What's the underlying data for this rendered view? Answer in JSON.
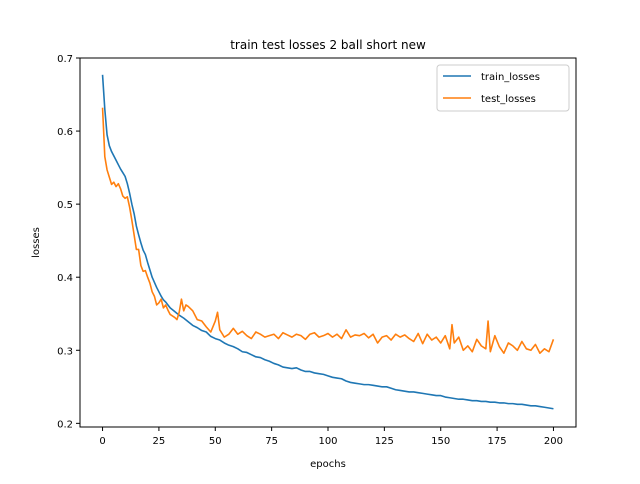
{
  "chart_data": {
    "type": "line",
    "title": "train test losses 2 ball short new",
    "xlabel": "epochs",
    "ylabel": "losses",
    "xlim": [
      -10,
      210
    ],
    "ylim": [
      0.195,
      0.7
    ],
    "xticks": [
      0,
      25,
      50,
      75,
      100,
      125,
      150,
      175,
      200
    ],
    "xtick_labels": [
      "0",
      "25",
      "50",
      "75",
      "100",
      "125",
      "150",
      "175",
      "200"
    ],
    "yticks": [
      0.2,
      0.3,
      0.4,
      0.5,
      0.6,
      0.7
    ],
    "ytick_labels": [
      "0.2",
      "0.3",
      "0.4",
      "0.5",
      "0.6",
      "0.7"
    ],
    "grid": false,
    "legend_position": "upper right",
    "series": [
      {
        "name": "train_losses",
        "color": "#1f77b4",
        "x": [
          0,
          1,
          2,
          3,
          4,
          5,
          6,
          7,
          8,
          9,
          10,
          11,
          12,
          13,
          14,
          15,
          16,
          17,
          18,
          19,
          20,
          21,
          22,
          23,
          24,
          25,
          26,
          27,
          28,
          29,
          30,
          32,
          34,
          36,
          38,
          40,
          42,
          44,
          46,
          48,
          50,
          52,
          54,
          56,
          58,
          60,
          62,
          64,
          66,
          68,
          70,
          72,
          74,
          76,
          78,
          80,
          82,
          84,
          86,
          88,
          90,
          92,
          94,
          96,
          98,
          100,
          102,
          104,
          106,
          108,
          110,
          112,
          114,
          116,
          118,
          120,
          122,
          124,
          126,
          128,
          130,
          132,
          134,
          136,
          138,
          140,
          142,
          144,
          146,
          148,
          150,
          152,
          154,
          156,
          158,
          160,
          162,
          164,
          166,
          168,
          170,
          172,
          174,
          176,
          178,
          180,
          182,
          184,
          186,
          188,
          190,
          192,
          194,
          196,
          198,
          200
        ],
        "y": [
          0.677,
          0.63,
          0.595,
          0.58,
          0.572,
          0.566,
          0.56,
          0.554,
          0.548,
          0.543,
          0.538,
          0.528,
          0.515,
          0.5,
          0.487,
          0.47,
          0.458,
          0.447,
          0.437,
          0.431,
          0.42,
          0.41,
          0.4,
          0.393,
          0.386,
          0.38,
          0.374,
          0.369,
          0.366,
          0.362,
          0.358,
          0.353,
          0.348,
          0.344,
          0.339,
          0.334,
          0.331,
          0.327,
          0.325,
          0.319,
          0.316,
          0.314,
          0.31,
          0.307,
          0.305,
          0.302,
          0.298,
          0.297,
          0.294,
          0.291,
          0.29,
          0.287,
          0.285,
          0.282,
          0.28,
          0.277,
          0.276,
          0.275,
          0.276,
          0.273,
          0.271,
          0.271,
          0.269,
          0.268,
          0.267,
          0.265,
          0.263,
          0.262,
          0.261,
          0.258,
          0.256,
          0.255,
          0.254,
          0.253,
          0.253,
          0.252,
          0.251,
          0.25,
          0.25,
          0.248,
          0.246,
          0.245,
          0.244,
          0.243,
          0.243,
          0.242,
          0.241,
          0.24,
          0.239,
          0.238,
          0.238,
          0.236,
          0.235,
          0.234,
          0.233,
          0.233,
          0.232,
          0.231,
          0.231,
          0.23,
          0.23,
          0.229,
          0.229,
          0.228,
          0.228,
          0.227,
          0.227,
          0.226,
          0.226,
          0.225,
          0.224,
          0.224,
          0.223,
          0.222,
          0.221,
          0.22
        ]
      },
      {
        "name": "test_losses",
        "color": "#ff7f0e",
        "x": [
          0,
          1,
          2,
          3,
          4,
          5,
          6,
          7,
          8,
          9,
          10,
          11,
          12,
          13,
          14,
          15,
          16,
          17,
          18,
          19,
          20,
          21,
          22,
          23,
          24,
          25,
          26,
          27,
          28,
          29,
          30,
          32,
          33,
          34,
          35,
          36,
          37,
          38,
          40,
          42,
          44,
          46,
          48,
          50,
          51,
          52,
          54,
          56,
          58,
          60,
          62,
          64,
          66,
          68,
          70,
          72,
          74,
          76,
          78,
          80,
          82,
          84,
          86,
          88,
          90,
          92,
          94,
          96,
          98,
          100,
          102,
          104,
          106,
          108,
          110,
          112,
          114,
          116,
          118,
          120,
          122,
          124,
          126,
          128,
          130,
          132,
          134,
          136,
          138,
          140,
          142,
          144,
          146,
          148,
          150,
          152,
          154,
          155,
          156,
          158,
          160,
          162,
          164,
          166,
          168,
          170,
          171,
          172,
          174,
          176,
          178,
          180,
          182,
          184,
          186,
          188,
          190,
          192,
          194,
          196,
          198,
          200
        ],
        "y": [
          0.632,
          0.565,
          0.547,
          0.537,
          0.527,
          0.53,
          0.524,
          0.528,
          0.521,
          0.511,
          0.508,
          0.51,
          0.496,
          0.478,
          0.458,
          0.438,
          0.438,
          0.416,
          0.408,
          0.409,
          0.4,
          0.392,
          0.38,
          0.374,
          0.362,
          0.365,
          0.37,
          0.358,
          0.362,
          0.355,
          0.349,
          0.345,
          0.342,
          0.352,
          0.37,
          0.354,
          0.362,
          0.36,
          0.354,
          0.342,
          0.34,
          0.332,
          0.325,
          0.34,
          0.352,
          0.328,
          0.318,
          0.322,
          0.33,
          0.322,
          0.326,
          0.32,
          0.316,
          0.325,
          0.322,
          0.318,
          0.32,
          0.322,
          0.316,
          0.324,
          0.321,
          0.318,
          0.322,
          0.32,
          0.315,
          0.322,
          0.324,
          0.318,
          0.32,
          0.323,
          0.318,
          0.322,
          0.316,
          0.328,
          0.318,
          0.321,
          0.32,
          0.323,
          0.317,
          0.322,
          0.31,
          0.318,
          0.32,
          0.314,
          0.322,
          0.318,
          0.321,
          0.316,
          0.312,
          0.323,
          0.309,
          0.322,
          0.314,
          0.318,
          0.31,
          0.32,
          0.302,
          0.335,
          0.31,
          0.318,
          0.3,
          0.306,
          0.298,
          0.315,
          0.306,
          0.302,
          0.34,
          0.298,
          0.32,
          0.305,
          0.296,
          0.31,
          0.306,
          0.3,
          0.312,
          0.302,
          0.3,
          0.308,
          0.296,
          0.302,
          0.298,
          0.315
        ]
      }
    ]
  }
}
